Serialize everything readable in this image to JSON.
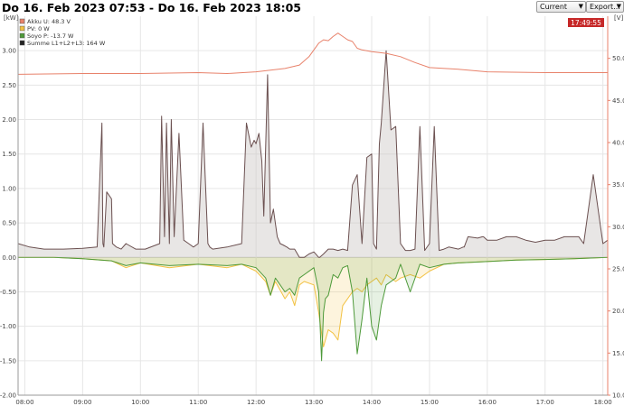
{
  "title": "Do 16. Feb 2023 07:53 - Do 16. Feb 2023 18:05",
  "controls": {
    "range_select": "Current",
    "export_select": "Export..."
  },
  "clock_badge": "17:49:55",
  "colors": {
    "akku": "#e8826b",
    "pv": "#f2c244",
    "soyo": "#4e9a3a",
    "summe": "#6b5050",
    "badge": "#c62828",
    "grid": "#e6e6e6"
  },
  "chart_data": {
    "type": "area",
    "left_unit": "[kW]",
    "right_unit": "[V]",
    "ylim_left": [
      -2.0,
      3.5
    ],
    "ylim_right": [
      10,
      55
    ],
    "xlim": [
      "07:53",
      "18:05"
    ],
    "x_ticks": [
      "08:00",
      "09:00",
      "10:00",
      "11:00",
      "12:00",
      "13:00",
      "14:00",
      "15:00",
      "16:00",
      "17:00",
      "18:00"
    ],
    "y_left_ticks": [
      "3.00",
      "2.50",
      "2.00",
      "1.50",
      "1.00",
      "0.50",
      "0.00",
      "-0.50",
      "-1.00",
      "-1.50",
      "-2.00"
    ],
    "y_right_ticks": [
      "50.0",
      "45.0",
      "40.0",
      "35.0",
      "30.0",
      "25.0",
      "20.0",
      "15.0",
      "10.0"
    ],
    "grid": true,
    "legend_position": "top-left",
    "legend": [
      {
        "label": "Akku U: 48.3 V",
        "color": "#e8826b"
      },
      {
        "label": "PV: 0 W",
        "color": "#f2c244"
      },
      {
        "label": "Soyo P: -13.7 W",
        "color": "#4e9a3a"
      },
      {
        "label": "Summe L1+L2+L3: 164 W",
        "color": "#222222"
      }
    ],
    "series": [
      {
        "name": "Summe L1+L2+L3",
        "axis": "left",
        "x": [
          "07:53",
          "08:05",
          "08:20",
          "08:40",
          "09:00",
          "09:15",
          "09:20",
          "09:21",
          "09:22",
          "09:25",
          "09:30",
          "09:31",
          "09:35",
          "09:40",
          "09:45",
          "09:55",
          "10:05",
          "10:20",
          "10:22",
          "10:25",
          "10:27",
          "10:30",
          "10:32",
          "10:35",
          "10:40",
          "10:45",
          "10:50",
          "10:55",
          "11:00",
          "11:05",
          "11:10",
          "11:12",
          "11:15",
          "11:30",
          "11:45",
          "11:50",
          "11:55",
          "11:58",
          "12:00",
          "12:03",
          "12:06",
          "12:08",
          "12:12",
          "12:15",
          "12:18",
          "12:22",
          "12:25",
          "12:28",
          "12:32",
          "12:35",
          "12:40",
          "12:45",
          "12:50",
          "12:55",
          "13:00",
          "13:05",
          "13:06",
          "13:10",
          "13:15",
          "13:20",
          "13:25",
          "13:30",
          "13:35",
          "13:40",
          "13:45",
          "13:50",
          "13:55",
          "14:00",
          "14:02",
          "14:05",
          "14:08",
          "14:10",
          "14:15",
          "14:20",
          "14:25",
          "14:30",
          "14:35",
          "14:40",
          "14:45",
          "14:50",
          "14:55",
          "15:00",
          "15:05",
          "15:10",
          "15:15",
          "15:20",
          "15:30",
          "15:35",
          "15:36",
          "15:40",
          "15:50",
          "15:55",
          "15:56",
          "16:00",
          "16:10",
          "16:20",
          "16:30",
          "16:40",
          "16:50",
          "17:00",
          "17:10",
          "17:20",
          "17:35",
          "17:40",
          "17:50",
          "18:00",
          "18:05"
        ],
        "values": [
          0.2,
          0.15,
          0.12,
          0.12,
          0.13,
          0.15,
          1.95,
          0.2,
          0.15,
          0.95,
          0.85,
          0.2,
          0.15,
          0.12,
          0.2,
          0.12,
          0.12,
          0.2,
          2.05,
          0.3,
          1.95,
          0.2,
          2.0,
          0.3,
          1.8,
          0.25,
          0.2,
          0.15,
          0.2,
          1.95,
          0.2,
          0.15,
          0.12,
          0.15,
          0.2,
          1.95,
          1.6,
          1.7,
          1.65,
          1.8,
          1.4,
          0.6,
          2.65,
          0.5,
          0.7,
          0.3,
          0.2,
          0.18,
          0.15,
          0.12,
          0.12,
          0.0,
          0.0,
          0.05,
          0.08,
          0.0,
          0.0,
          0.05,
          0.12,
          0.12,
          0.1,
          0.12,
          0.1,
          1.05,
          1.2,
          0.2,
          1.45,
          1.5,
          0.2,
          0.12,
          1.65,
          1.95,
          3.0,
          1.85,
          1.9,
          0.2,
          0.1,
          0.1,
          0.12,
          1.9,
          0.1,
          0.2,
          1.9,
          0.1,
          0.12,
          0.15,
          0.12,
          0.15,
          0.15,
          0.3,
          0.28,
          0.3,
          0.3,
          0.25,
          0.25,
          0.3,
          0.3,
          0.25,
          0.22,
          0.25,
          0.25,
          0.3,
          0.3,
          0.2,
          1.2,
          0.2,
          0.25
        ]
      },
      {
        "name": "PV",
        "axis": "left",
        "x": [
          "07:53",
          "08:30",
          "09:00",
          "09:30",
          "09:45",
          "10:00",
          "10:30",
          "11:00",
          "11:30",
          "11:45",
          "12:00",
          "12:10",
          "12:15",
          "12:20",
          "12:30",
          "12:35",
          "12:40",
          "12:45",
          "12:50",
          "13:00",
          "13:05",
          "13:10",
          "13:15",
          "13:20",
          "13:25",
          "13:30",
          "13:35",
          "13:40",
          "13:45",
          "13:50",
          "13:55",
          "14:00",
          "14:05",
          "14:10",
          "14:15",
          "14:20",
          "14:25",
          "14:30",
          "14:40",
          "14:50",
          "15:00",
          "15:15",
          "15:30",
          "16:00",
          "16:30",
          "17:00",
          "17:30",
          "18:05"
        ],
        "values": [
          0.0,
          0.0,
          -0.02,
          -0.05,
          -0.15,
          -0.08,
          -0.15,
          -0.1,
          -0.15,
          -0.1,
          -0.2,
          -0.35,
          -0.55,
          -0.35,
          -0.6,
          -0.5,
          -0.7,
          -0.4,
          -0.35,
          -0.4,
          -0.8,
          -1.3,
          -1.05,
          -1.1,
          -1.2,
          -0.7,
          -0.6,
          -0.5,
          -0.45,
          -0.5,
          -0.4,
          -0.35,
          -0.3,
          -0.4,
          -0.25,
          -0.3,
          -0.35,
          -0.3,
          -0.25,
          -0.3,
          -0.2,
          -0.1,
          -0.08,
          -0.06,
          -0.04,
          -0.03,
          -0.02,
          0.0
        ]
      },
      {
        "name": "Soyo P",
        "axis": "left",
        "x": [
          "07:53",
          "08:30",
          "09:00",
          "09:30",
          "09:45",
          "10:00",
          "10:30",
          "11:00",
          "11:30",
          "11:45",
          "12:00",
          "12:10",
          "12:15",
          "12:20",
          "12:30",
          "12:35",
          "12:40",
          "12:45",
          "12:50",
          "13:00",
          "13:05",
          "13:08",
          "13:10",
          "13:12",
          "13:15",
          "13:20",
          "13:25",
          "13:30",
          "13:35",
          "13:40",
          "13:45",
          "13:50",
          "13:55",
          "14:00",
          "14:05",
          "14:10",
          "14:15",
          "14:20",
          "14:25",
          "14:30",
          "14:40",
          "14:50",
          "15:00",
          "15:15",
          "15:30",
          "16:00",
          "16:30",
          "17:00",
          "17:30",
          "18:05"
        ],
        "values": [
          0.0,
          0.0,
          -0.02,
          -0.05,
          -0.12,
          -0.08,
          -0.12,
          -0.1,
          -0.12,
          -0.1,
          -0.15,
          -0.3,
          -0.55,
          -0.3,
          -0.5,
          -0.45,
          -0.55,
          -0.3,
          -0.25,
          -0.15,
          -0.5,
          -1.5,
          -0.8,
          -0.6,
          -0.55,
          -0.25,
          -0.3,
          -0.15,
          -0.12,
          -0.5,
          -1.4,
          -0.9,
          -0.3,
          -1.0,
          -1.2,
          -0.7,
          -0.4,
          -0.35,
          -0.3,
          -0.1,
          -0.5,
          -0.1,
          -0.15,
          -0.1,
          -0.08,
          -0.06,
          -0.04,
          -0.03,
          -0.02,
          0.0
        ]
      },
      {
        "name": "Akku U",
        "axis": "right",
        "x": [
          "07:53",
          "09:00",
          "10:00",
          "11:00",
          "11:30",
          "12:00",
          "12:30",
          "12:45",
          "12:55",
          "13:00",
          "13:05",
          "13:10",
          "13:15",
          "13:20",
          "13:25",
          "13:30",
          "13:35",
          "13:40",
          "13:45",
          "13:50",
          "14:00",
          "14:15",
          "14:30",
          "14:45",
          "15:00",
          "15:30",
          "16:00",
          "17:00",
          "18:05"
        ],
        "values": [
          48.1,
          48.2,
          48.2,
          48.3,
          48.2,
          48.4,
          48.8,
          49.2,
          50.2,
          51.0,
          51.8,
          52.2,
          52.1,
          52.6,
          53.0,
          52.6,
          52.2,
          52.0,
          51.2,
          51.0,
          50.8,
          50.6,
          50.2,
          49.5,
          48.9,
          48.7,
          48.4,
          48.3,
          48.3
        ]
      }
    ]
  }
}
